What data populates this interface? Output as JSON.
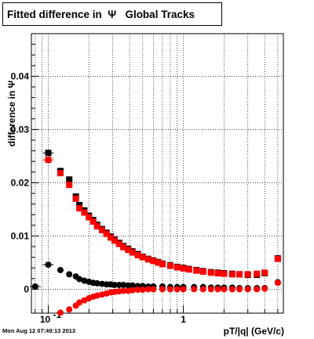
{
  "header": {
    "timestamp": "Mon Aug 12 07:49:13 2013"
  },
  "chart_data": {
    "type": "scatter",
    "title": "Fitted difference in  Ψ   Global Tracks",
    "xlabel": "pT/|q| (GeV/c)",
    "ylabel": "difference in Ψ",
    "x_scale": "log",
    "xlim": [
      0.075,
      5.5
    ],
    "ylim": [
      -0.0045,
      0.048
    ],
    "grid": true,
    "x_ticks": [
      {
        "value": 0.1,
        "label": "10",
        "exp": "-1"
      },
      {
        "value": 1,
        "label": "1",
        "exp": ""
      }
    ],
    "y_ticks": [
      {
        "value": 0,
        "label": "0"
      },
      {
        "value": 0.01,
        "label": "0.01"
      },
      {
        "value": 0.02,
        "label": "0.02"
      },
      {
        "value": 0.03,
        "label": "0.03"
      },
      {
        "value": 0.04,
        "label": "0.04"
      }
    ],
    "series": [
      {
        "color": "#000000",
        "marker": "square",
        "x": [
          0.1,
          0.123,
          0.143,
          0.16,
          0.17,
          0.185,
          0.2,
          0.215,
          0.23,
          0.25,
          0.27,
          0.29,
          0.31,
          0.335,
          0.36,
          0.39,
          0.42,
          0.46,
          0.5,
          0.55,
          0.6,
          0.65,
          0.7,
          0.8,
          0.9,
          1.0,
          1.1,
          1.25,
          1.4,
          1.6,
          1.8,
          2.0,
          2.3,
          2.6,
          3.0,
          3.5,
          4.0,
          5.0
        ],
        "y": [
          0.0256,
          0.0222,
          0.0206,
          0.0174,
          0.0158,
          0.0148,
          0.0138,
          0.013,
          0.0121,
          0.0113,
          0.0106,
          0.0099,
          0.0093,
          0.0087,
          0.0081,
          0.0076,
          0.0071,
          0.0066,
          0.0061,
          0.0057,
          0.0054,
          0.0051,
          0.0048,
          0.0045,
          0.0042,
          0.004,
          0.0038,
          0.0036,
          0.0034,
          0.0032,
          0.0031,
          0.003,
          0.0029,
          0.0028,
          0.0027,
          0.0027,
          0.003,
          0.0058
        ]
      },
      {
        "color": "#ff0000",
        "marker": "square",
        "x": [
          0.1,
          0.123,
          0.143,
          0.16,
          0.17,
          0.185,
          0.2,
          0.215,
          0.23,
          0.25,
          0.27,
          0.29,
          0.31,
          0.335,
          0.36,
          0.39,
          0.42,
          0.46,
          0.5,
          0.55,
          0.6,
          0.65,
          0.7,
          0.8,
          0.9,
          1.0,
          1.1,
          1.25,
          1.4,
          1.6,
          1.8,
          2.0,
          2.3,
          2.6,
          3.0,
          3.5,
          4.0,
          5.0
        ],
        "y": [
          0.0243,
          0.0218,
          0.0196,
          0.017,
          0.0152,
          0.0144,
          0.0135,
          0.0127,
          0.0118,
          0.0111,
          0.0104,
          0.0097,
          0.0091,
          0.0085,
          0.0079,
          0.0074,
          0.0069,
          0.0064,
          0.006,
          0.0056,
          0.0053,
          0.005,
          0.0047,
          0.0044,
          0.0041,
          0.0039,
          0.0037,
          0.0035,
          0.0033,
          0.0031,
          0.003,
          0.0029,
          0.0028,
          0.0028,
          0.0028,
          0.0029,
          0.0031,
          0.0057
        ]
      },
      {
        "color": "#000000",
        "marker": "circle",
        "x": [
          0.08,
          0.1,
          0.123,
          0.143,
          0.16,
          0.17,
          0.185,
          0.2,
          0.215,
          0.23,
          0.25,
          0.27,
          0.29,
          0.31,
          0.335,
          0.36,
          0.39,
          0.42,
          0.46,
          0.5,
          0.55,
          0.6,
          0.7,
          0.8,
          0.9,
          1.0,
          1.2,
          1.4,
          1.6,
          1.8,
          2.0,
          2.3,
          2.6,
          3.0,
          3.5,
          4.0,
          5.0
        ],
        "y": [
          0.0005,
          0.0046,
          0.0036,
          0.0028,
          0.0024,
          0.0019,
          0.0016,
          0.0014,
          0.0012,
          0.0011,
          0.001,
          0.0009,
          0.0009,
          0.0008,
          0.0008,
          0.0008,
          0.0007,
          0.0007,
          0.0006,
          0.0006,
          0.0005,
          0.0005,
          0.0005,
          0.0004,
          0.0004,
          0.0004,
          0.0004,
          0.0004,
          0.0003,
          0.0003,
          0.0003,
          0.0003,
          0.0002,
          0.0002,
          0.0002,
          0.0002,
          0.0013
        ]
      },
      {
        "color": "#ff0000",
        "marker": "circle",
        "x": [
          0.123,
          0.143,
          0.16,
          0.17,
          0.185,
          0.2,
          0.215,
          0.23,
          0.25,
          0.27,
          0.29,
          0.31,
          0.335,
          0.36,
          0.39,
          0.42,
          0.46,
          0.5,
          0.55,
          0.6,
          0.7,
          0.8,
          0.9,
          1.0,
          1.2,
          1.4,
          1.6,
          1.8,
          2.0,
          2.3,
          2.6,
          3.0,
          3.5,
          4.0,
          5.0
        ],
        "y": [
          -0.0044,
          -0.0038,
          -0.0031,
          -0.0025,
          -0.0021,
          -0.0017,
          -0.0014,
          -0.0012,
          -0.001,
          -0.0008,
          -0.0006,
          -0.0005,
          -0.0004,
          -0.0003,
          -0.0003,
          -0.0002,
          -0.0001,
          -0.0001,
          0.0,
          0.0,
          0.0,
          0.0,
          0.0,
          0.0,
          0.0,
          0.0,
          0.0,
          0.0,
          0.0,
          0.0,
          0.0,
          0.0,
          0.0,
          0.0001,
          0.0012
        ]
      }
    ]
  }
}
